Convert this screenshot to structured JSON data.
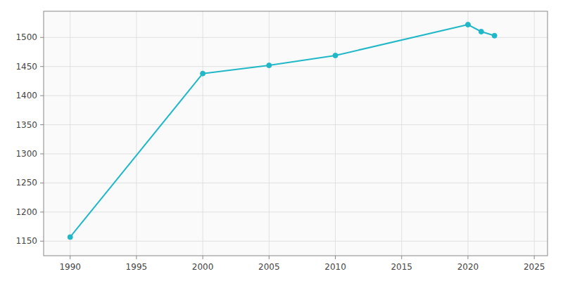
{
  "chart_data": {
    "type": "line",
    "x": [
      1990,
      2000,
      2005,
      2010,
      2020,
      2021,
      2022
    ],
    "values": [
      1157,
      1438,
      1452,
      1469,
      1522,
      1510,
      1503
    ],
    "color": "#20b8c8",
    "marker": "circle",
    "xlim": [
      1988,
      2026
    ],
    "ylim": [
      1125,
      1545
    ],
    "xticks": [
      1990,
      1995,
      2000,
      2005,
      2010,
      2015,
      2020,
      2025
    ],
    "yticks": [
      1150,
      1200,
      1250,
      1300,
      1350,
      1400,
      1450,
      1500
    ],
    "grid": true
  }
}
